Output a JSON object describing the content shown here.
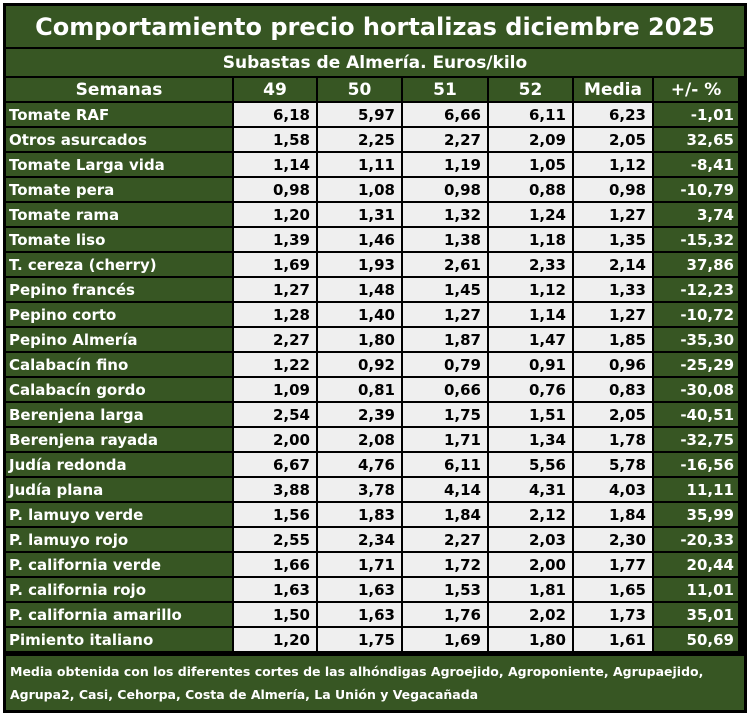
{
  "title": "Comportamiento precio hortalizas diciembre 2025",
  "subtitle": "Subastas de Almería. Euros/kilo",
  "headers": [
    "Semanas",
    "49",
    "50",
    "51",
    "52",
    "Media",
    "+/- %"
  ],
  "rows": [
    {
      "name": "Tomate RAF",
      "w49": "6,18",
      "w50": "5,97",
      "w51": "6,66",
      "w52": "6,11",
      "media": "6,23",
      "pct": "-1,01"
    },
    {
      "name": "Otros asurcados",
      "w49": "1,58",
      "w50": "2,25",
      "w51": "2,27",
      "w52": "2,09",
      "media": "2,05",
      "pct": "32,65"
    },
    {
      "name": "Tomate Larga vida",
      "w49": "1,14",
      "w50": "1,11",
      "w51": "1,19",
      "w52": "1,05",
      "media": "1,12",
      "pct": "-8,41"
    },
    {
      "name": "Tomate pera",
      "w49": "0,98",
      "w50": "1,08",
      "w51": "0,98",
      "w52": "0,88",
      "media": "0,98",
      "pct": "-10,79"
    },
    {
      "name": "Tomate rama",
      "w49": "1,20",
      "w50": "1,31",
      "w51": "1,32",
      "w52": "1,24",
      "media": "1,27",
      "pct": "3,74"
    },
    {
      "name": "Tomate liso",
      "w49": "1,39",
      "w50": "1,46",
      "w51": "1,38",
      "w52": "1,18",
      "media": "1,35",
      "pct": "-15,32"
    },
    {
      "name": "T. cereza (cherry)",
      "w49": "1,69",
      "w50": "1,93",
      "w51": "2,61",
      "w52": "2,33",
      "media": "2,14",
      "pct": "37,86"
    },
    {
      "name": "Pepino francés",
      "w49": "1,27",
      "w50": "1,48",
      "w51": "1,45",
      "w52": "1,12",
      "media": "1,33",
      "pct": "-12,23"
    },
    {
      "name": "Pepino corto",
      "w49": "1,28",
      "w50": "1,40",
      "w51": "1,27",
      "w52": "1,14",
      "media": "1,27",
      "pct": "-10,72"
    },
    {
      "name": "Pepino Almería",
      "w49": "2,27",
      "w50": "1,80",
      "w51": "1,87",
      "w52": "1,47",
      "media": "1,85",
      "pct": "-35,30"
    },
    {
      "name": "Calabacín fino",
      "w49": "1,22",
      "w50": "0,92",
      "w51": "0,79",
      "w52": "0,91",
      "media": "0,96",
      "pct": "-25,29"
    },
    {
      "name": "Calabacín gordo",
      "w49": "1,09",
      "w50": "0,81",
      "w51": "0,66",
      "w52": "0,76",
      "media": "0,83",
      "pct": "-30,08"
    },
    {
      "name": "Berenjena larga",
      "w49": "2,54",
      "w50": "2,39",
      "w51": "1,75",
      "w52": "1,51",
      "media": "2,05",
      "pct": "-40,51"
    },
    {
      "name": "Berenjena rayada",
      "w49": "2,00",
      "w50": "2,08",
      "w51": "1,71",
      "w52": "1,34",
      "media": "1,78",
      "pct": "-32,75"
    },
    {
      "name": "Judía redonda",
      "w49": "6,67",
      "w50": "4,76",
      "w51": "6,11",
      "w52": "5,56",
      "media": "5,78",
      "pct": "-16,56"
    },
    {
      "name": "Judía plana",
      "w49": "3,88",
      "w50": "3,78",
      "w51": "4,14",
      "w52": "4,31",
      "media": "4,03",
      "pct": "11,11"
    },
    {
      "name": "P. lamuyo verde",
      "w49": "1,56",
      "w50": "1,83",
      "w51": "1,84",
      "w52": "2,12",
      "media": "1,84",
      "pct": "35,99"
    },
    {
      "name": "P. lamuyo rojo",
      "w49": "2,55",
      "w50": "2,34",
      "w51": "2,27",
      "w52": "2,03",
      "media": "2,30",
      "pct": "-20,33"
    },
    {
      "name": "P. california verde",
      "w49": "1,66",
      "w50": "1,71",
      "w51": "1,72",
      "w52": "2,00",
      "media": "1,77",
      "pct": "20,44"
    },
    {
      "name": "P. california rojo",
      "w49": "1,63",
      "w50": "1,63",
      "w51": "1,53",
      "w52": "1,81",
      "media": "1,65",
      "pct": "11,01"
    },
    {
      "name": "P. california amarillo",
      "w49": "1,50",
      "w50": "1,63",
      "w51": "1,76",
      "w52": "2,02",
      "media": "1,73",
      "pct": "35,01"
    },
    {
      "name": "Pimiento italiano",
      "w49": "1,20",
      "w50": "1,75",
      "w51": "1,69",
      "w52": "1,80",
      "media": "1,61",
      "pct": "50,69"
    }
  ],
  "note": "Media obtenida con los diferentes cortes de las alhóndigas Agroejido, Agroponiente, Agrupaejido, Agrupa2, Casi, Cehorpa, Costa de Almería, La Unión y Vegacañada",
  "colors": {
    "header_green": "#375623",
    "cell_grey": "#efefef",
    "border": "#000000"
  },
  "chart_data": {
    "type": "table",
    "title": "Comportamiento precio hortalizas diciembre 2025",
    "subtitle": "Subastas de Almería. Euros/kilo",
    "columns": [
      "Semanas",
      "49",
      "50",
      "51",
      "52",
      "Media",
      "+/- %"
    ]
  }
}
